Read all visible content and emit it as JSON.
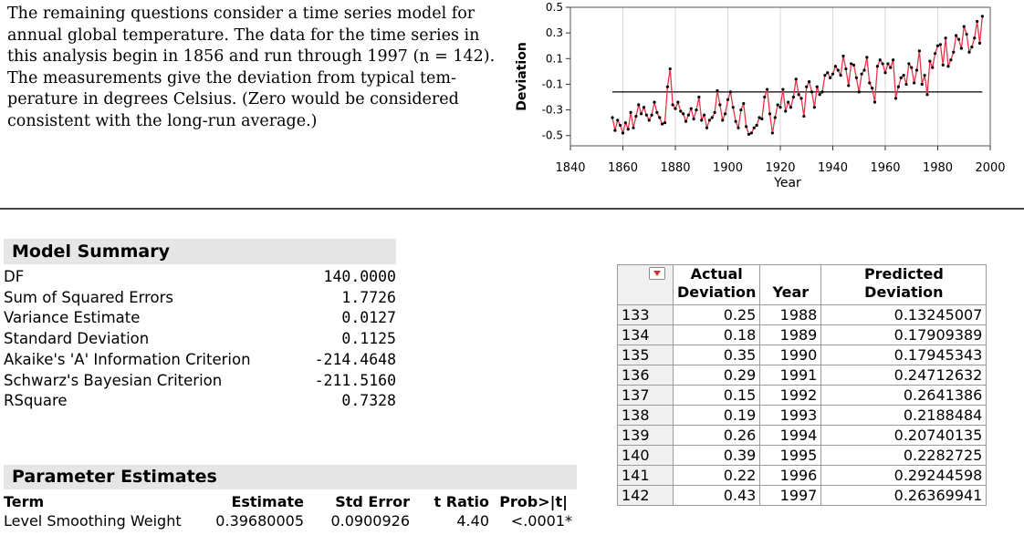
{
  "intro": [
    "The remaining questions consider a time series model for",
    "annual global temperature.  The data for the time series in",
    "this analysis begin in 1856 and run through 1997 (n = 142).",
    "The measurements give the deviation from typical tem-",
    "perature in degrees Celsius.  (Zero would be considered",
    "consistent with the long-run average.)"
  ],
  "chart_data": {
    "type": "line",
    "xlabel": "Year",
    "ylabel": "Deviation",
    "xlim": [
      1840,
      2000
    ],
    "ylim": [
      -0.58,
      0.5
    ],
    "xticks": [
      1840,
      1860,
      1880,
      1900,
      1920,
      1940,
      1960,
      1980,
      2000
    ],
    "yticks": [
      0.5,
      0.3,
      0.1,
      -0.1,
      -0.3,
      -0.5
    ],
    "ytick_labels": [
      "0.5",
      "0.3",
      "0.1",
      "-0.1",
      "-0.3",
      "-0.5"
    ],
    "line_color": "#e8344a",
    "marker_color": "#000000",
    "reference_level": -0.16,
    "x": [
      1856,
      1857,
      1858,
      1859,
      1860,
      1861,
      1862,
      1863,
      1864,
      1865,
      1866,
      1867,
      1868,
      1869,
      1870,
      1871,
      1872,
      1873,
      1874,
      1875,
      1876,
      1877,
      1878,
      1879,
      1880,
      1881,
      1882,
      1883,
      1884,
      1885,
      1886,
      1887,
      1888,
      1889,
      1890,
      1891,
      1892,
      1893,
      1894,
      1895,
      1896,
      1897,
      1898,
      1899,
      1900,
      1901,
      1902,
      1903,
      1904,
      1905,
      1906,
      1907,
      1908,
      1909,
      1910,
      1911,
      1912,
      1913,
      1914,
      1915,
      1916,
      1917,
      1918,
      1919,
      1920,
      1921,
      1922,
      1923,
      1924,
      1925,
      1926,
      1927,
      1928,
      1929,
      1930,
      1931,
      1932,
      1933,
      1934,
      1935,
      1936,
      1937,
      1938,
      1939,
      1940,
      1941,
      1942,
      1943,
      1944,
      1945,
      1946,
      1947,
      1948,
      1949,
      1950,
      1951,
      1952,
      1953,
      1954,
      1955,
      1956,
      1957,
      1958,
      1959,
      1960,
      1961,
      1962,
      1963,
      1964,
      1965,
      1966,
      1967,
      1968,
      1969,
      1970,
      1971,
      1972,
      1973,
      1974,
      1975,
      1976,
      1977,
      1978,
      1979,
      1980,
      1981,
      1982,
      1983,
      1984,
      1985,
      1986,
      1987,
      1988,
      1989,
      1990,
      1991,
      1992,
      1993,
      1994,
      1995,
      1996,
      1997
    ],
    "y": [
      -0.36,
      -0.46,
      -0.38,
      -0.42,
      -0.48,
      -0.4,
      -0.45,
      -0.32,
      -0.44,
      -0.35,
      -0.26,
      -0.33,
      -0.28,
      -0.34,
      -0.38,
      -0.34,
      -0.24,
      -0.32,
      -0.36,
      -0.41,
      -0.4,
      -0.12,
      0.02,
      -0.26,
      -0.29,
      -0.24,
      -0.31,
      -0.33,
      -0.39,
      -0.34,
      -0.29,
      -0.37,
      -0.3,
      -0.2,
      -0.38,
      -0.34,
      -0.44,
      -0.38,
      -0.36,
      -0.32,
      -0.15,
      -0.26,
      -0.38,
      -0.33,
      -0.22,
      -0.16,
      -0.28,
      -0.39,
      -0.44,
      -0.3,
      -0.25,
      -0.43,
      -0.49,
      -0.48,
      -0.44,
      -0.42,
      -0.36,
      -0.37,
      -0.2,
      -0.14,
      -0.33,
      -0.48,
      -0.36,
      -0.26,
      -0.28,
      -0.14,
      -0.31,
      -0.24,
      -0.28,
      -0.2,
      -0.06,
      -0.18,
      -0.21,
      -0.35,
      -0.12,
      -0.08,
      -0.16,
      -0.28,
      -0.12,
      -0.18,
      -0.16,
      -0.03,
      -0.01,
      -0.05,
      -0.02,
      0.04,
      0.01,
      -0.03,
      0.12,
      0.02,
      -0.11,
      0.06,
      0.05,
      -0.05,
      -0.16,
      -0.02,
      0.01,
      0.11,
      -0.09,
      -0.13,
      -0.24,
      0.04,
      0.09,
      0.06,
      -0.01,
      0.06,
      0.03,
      0.09,
      -0.21,
      -0.12,
      -0.05,
      -0.03,
      -0.1,
      0.06,
      0.03,
      -0.09,
      0.01,
      0.16,
      -0.1,
      -0.03,
      -0.18,
      0.08,
      0.03,
      0.14,
      0.2,
      0.21,
      0.05,
      0.26,
      0.04,
      0.09,
      0.15,
      0.28,
      0.25,
      0.18,
      0.35,
      0.29,
      0.15,
      0.19,
      0.26,
      0.39,
      0.22,
      0.43
    ]
  },
  "model_summary": {
    "title": "Model Summary",
    "rows": [
      {
        "label": "DF",
        "value": "140.0000"
      },
      {
        "label": "Sum of Squared Errors",
        "value": "1.7726"
      },
      {
        "label": "Variance Estimate",
        "value": "0.0127"
      },
      {
        "label": "Standard Deviation",
        "value": "0.1125"
      },
      {
        "label": "Akaike's 'A' Information Criterion",
        "value": "-214.4648"
      },
      {
        "label": "Schwarz's Bayesian Criterion",
        "value": "-211.5160"
      },
      {
        "label": "RSquare",
        "value": "0.7328"
      }
    ]
  },
  "parameter_estimates": {
    "title": "Parameter Estimates",
    "headers": [
      "Term",
      "Estimate",
      "Std Error",
      "t Ratio",
      "Prob>|t|"
    ],
    "row": [
      "Level Smoothing Weight",
      "0.39680005",
      "0.0900926",
      "4.40",
      "<.0001*"
    ]
  },
  "data_table": {
    "headers": [
      "Actual Deviation",
      "Year",
      "Predicted Deviation"
    ],
    "header_line1": "Actual",
    "header_line2": "Deviation",
    "rows": [
      {
        "n": "133",
        "actual": "0.25",
        "year": "1988",
        "pred": "0.13245007"
      },
      {
        "n": "134",
        "actual": "0.18",
        "year": "1989",
        "pred": "0.17909389"
      },
      {
        "n": "135",
        "actual": "0.35",
        "year": "1990",
        "pred": "0.17945343"
      },
      {
        "n": "136",
        "actual": "0.29",
        "year": "1991",
        "pred": "0.24712632"
      },
      {
        "n": "137",
        "actual": "0.15",
        "year": "1992",
        "pred": "0.2641386"
      },
      {
        "n": "138",
        "actual": "0.19",
        "year": "1993",
        "pred": "0.2188484"
      },
      {
        "n": "139",
        "actual": "0.26",
        "year": "1994",
        "pred": "0.20740135"
      },
      {
        "n": "140",
        "actual": "0.39",
        "year": "1995",
        "pred": "0.2282725"
      },
      {
        "n": "141",
        "actual": "0.22",
        "year": "1996",
        "pred": "0.29244598"
      },
      {
        "n": "142",
        "actual": "0.43",
        "year": "1997",
        "pred": "0.26369941"
      }
    ]
  }
}
